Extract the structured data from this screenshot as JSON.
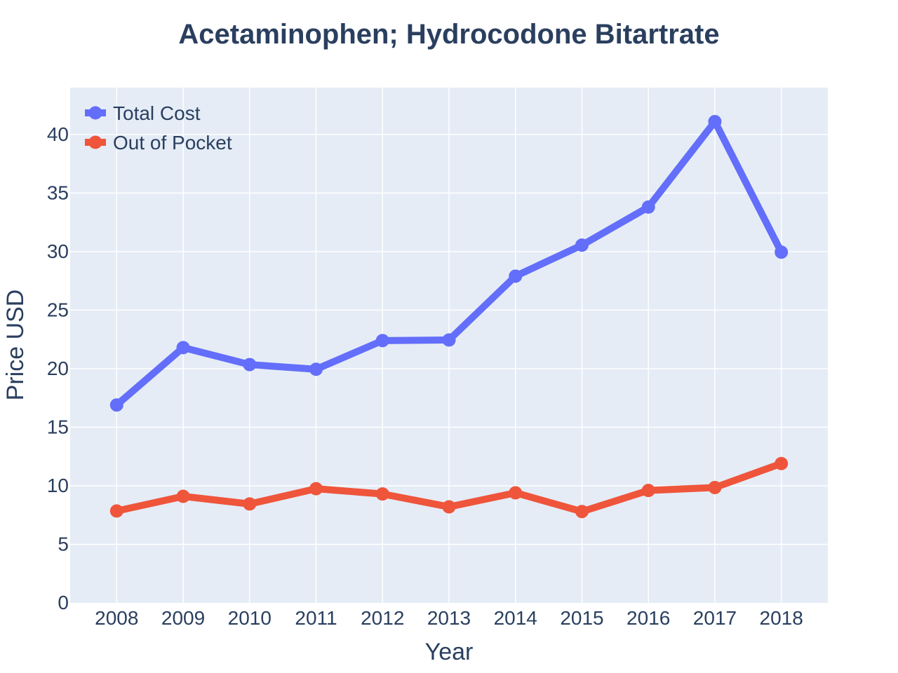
{
  "chart_data": {
    "type": "line",
    "title": "Acetaminophen; Hydrocodone Bitartrate",
    "xlabel": "Year",
    "ylabel": "Price USD",
    "x": [
      2008,
      2009,
      2010,
      2011,
      2012,
      2013,
      2014,
      2015,
      2016,
      2017,
      2018
    ],
    "xlim": [
      2007.3,
      2018.7
    ],
    "ylim": [
      0,
      44
    ],
    "yticks": [
      0,
      5,
      10,
      15,
      20,
      25,
      30,
      35,
      40
    ],
    "grid": true,
    "legend_position": "top-left",
    "series": [
      {
        "name": "Total Cost",
        "color": "#636efa",
        "values": [
          16.9,
          21.8,
          20.35,
          19.95,
          22.4,
          22.45,
          27.9,
          30.55,
          33.8,
          41.1,
          29.95
        ]
      },
      {
        "name": "Out of Pocket",
        "color": "#ef553b",
        "values": [
          7.85,
          9.1,
          8.45,
          9.75,
          9.3,
          8.2,
          9.4,
          7.8,
          9.6,
          9.85,
          11.9
        ]
      }
    ],
    "colors": {
      "plot_background": "#e5ecf6",
      "grid": "#ffffff",
      "text": "#2a3f5f"
    }
  }
}
